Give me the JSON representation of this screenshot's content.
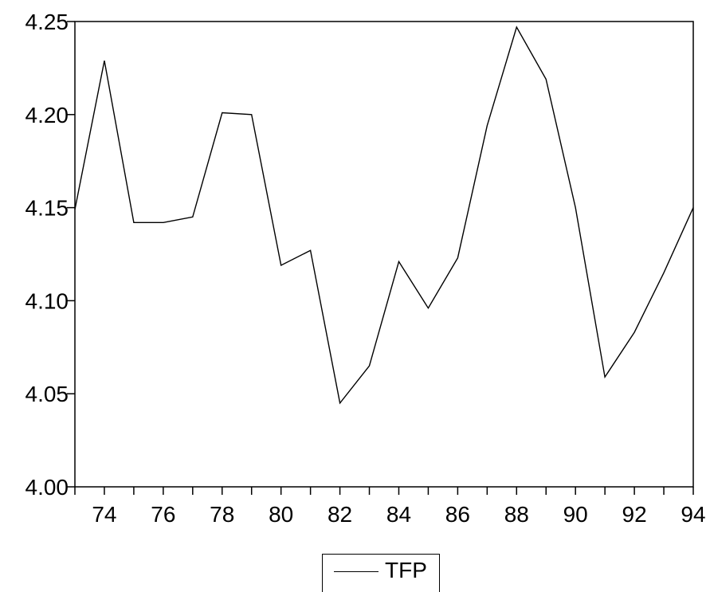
{
  "chart_data": {
    "type": "line",
    "x": [
      73,
      74,
      75,
      76,
      77,
      78,
      79,
      80,
      81,
      82,
      83,
      84,
      85,
      86,
      87,
      88,
      89,
      90,
      91,
      92,
      93,
      94
    ],
    "x_tick_labels": [
      "74",
      "76",
      "78",
      "80",
      "82",
      "84",
      "86",
      "88",
      "90",
      "92",
      "94"
    ],
    "y_tick_labels": [
      "4.00",
      "4.05",
      "4.10",
      "4.15",
      "4.20",
      "4.25"
    ],
    "xlim": [
      73,
      94
    ],
    "ylim": [
      4.0,
      4.25
    ],
    "grid": false,
    "legend_position": "bottom-center",
    "series": [
      {
        "name": "TFP",
        "color": "#000000",
        "values": [
          4.149,
          4.229,
          4.142,
          4.142,
          4.145,
          4.201,
          4.2,
          4.119,
          4.127,
          4.045,
          4.065,
          4.121,
          4.096,
          4.123,
          4.194,
          4.247,
          4.219,
          4.15,
          4.059,
          4.083,
          4.115,
          4.15
        ]
      }
    ]
  }
}
